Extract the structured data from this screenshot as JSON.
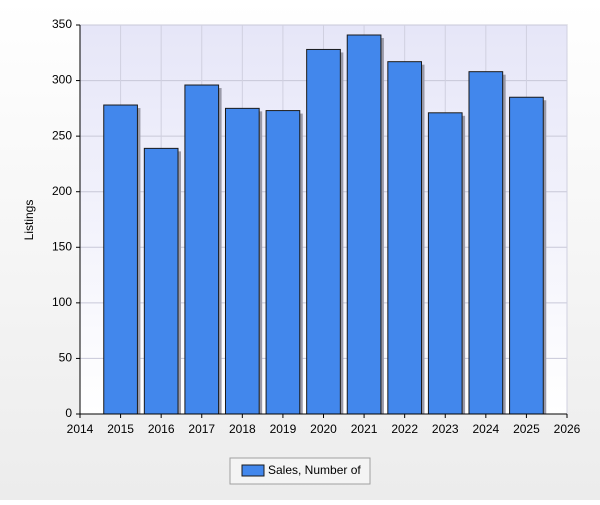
{
  "chart_data": {
    "type": "bar",
    "y_label": "Listings",
    "x": [
      2015,
      2016,
      2017,
      2018,
      2019,
      2020,
      2021,
      2022,
      2023,
      2024,
      2025
    ],
    "series": [
      {
        "name": "Sales, Number of",
        "color": "#4287ec",
        "values": [
          278,
          239,
          296,
          275,
          273,
          328,
          341,
          317,
          271,
          308,
          285
        ]
      }
    ],
    "xlim": [
      2014,
      2026
    ],
    "xticks": [
      2014,
      2015,
      2016,
      2017,
      2018,
      2019,
      2020,
      2021,
      2022,
      2023,
      2024,
      2025,
      2026
    ],
    "ylim": [
      0,
      350
    ],
    "yticks": [
      0,
      50,
      100,
      150,
      200,
      250,
      300,
      350
    ],
    "grid": true
  }
}
